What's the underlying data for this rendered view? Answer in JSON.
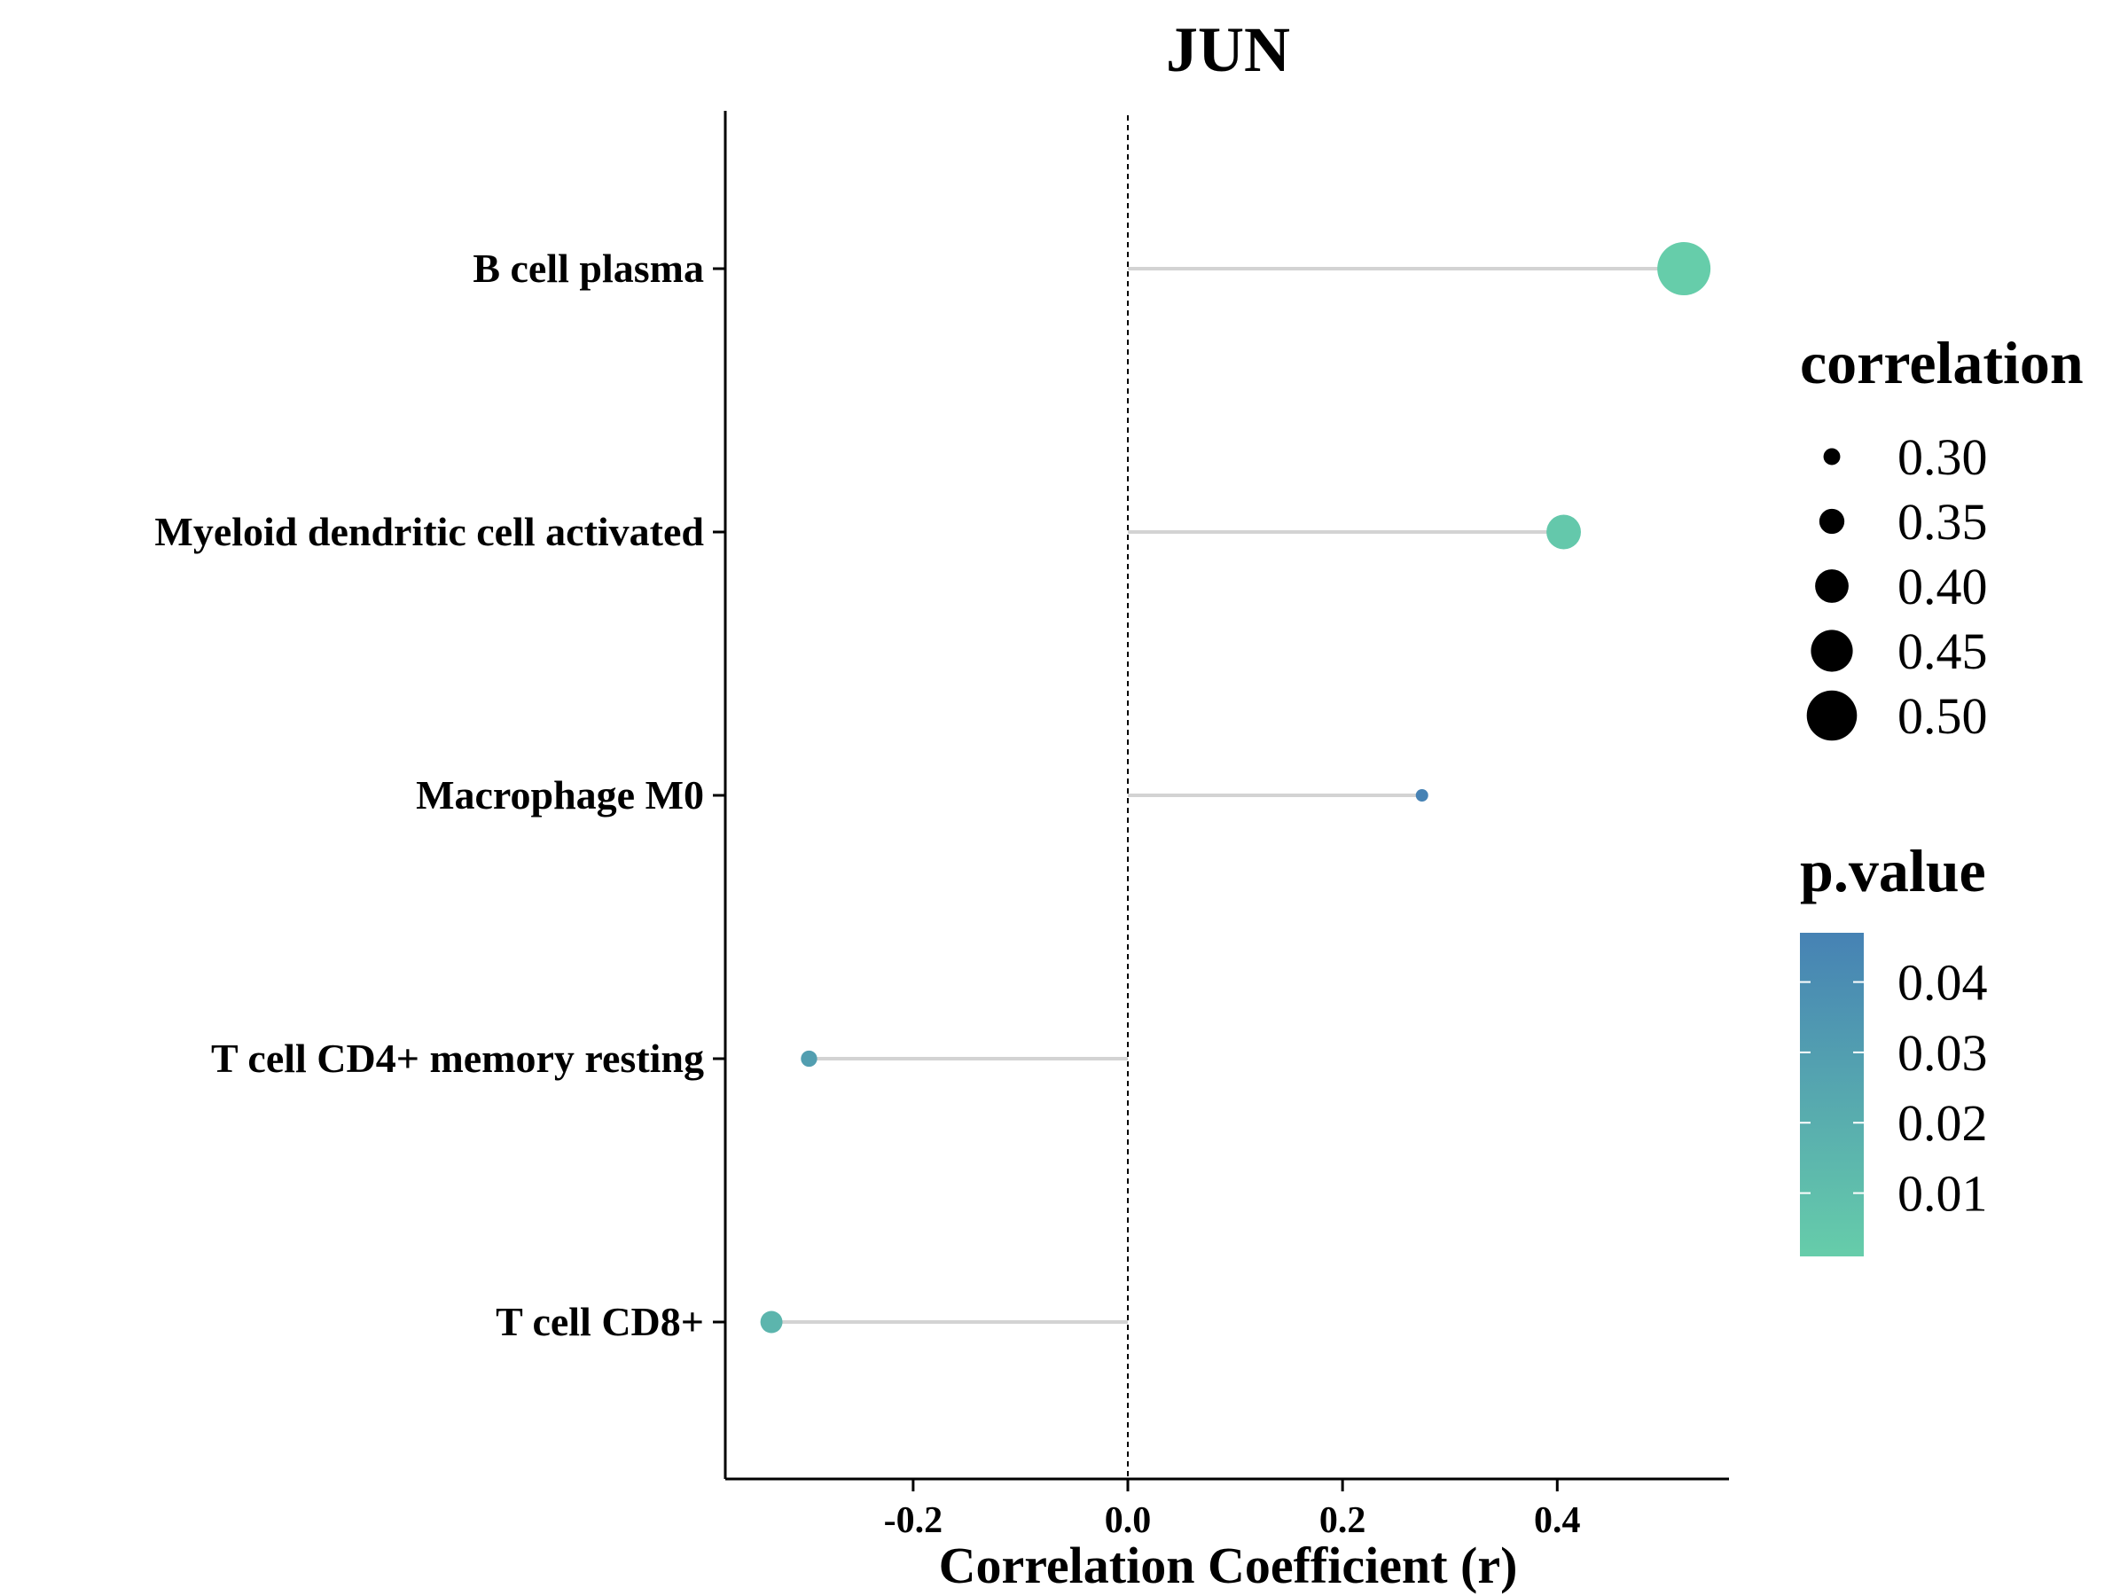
{
  "chart_data": {
    "type": "lollipop",
    "title": "JUN",
    "xlabel": "Correlation Coefficient (r)",
    "ylabel": "",
    "xlim": [
      -0.375,
      0.56
    ],
    "x_ticks": [
      -0.2,
      0.0,
      0.2,
      0.4
    ],
    "x_tick_labels": [
      "-0.2",
      "0.0",
      "0.2",
      "0.4"
    ],
    "reference_line": 0,
    "categories": [
      "B cell plasma",
      "Myeloid dendritic cell activated",
      "Macrophage M0",
      "T cell CD4+ memory resting",
      "T cell CD8+"
    ],
    "series": [
      {
        "values": [
          0.518,
          0.406,
          0.274,
          -0.297,
          -0.332
        ],
        "p_values": [
          0.001,
          0.004,
          0.047,
          0.03,
          0.016
        ],
        "abs_correlation": [
          0.518,
          0.406,
          0.274,
          0.297,
          0.332
        ]
      }
    ],
    "grid": false,
    "legend": {
      "placement": "right",
      "size_legend": {
        "title": "correlation",
        "values": [
          0.3,
          0.35,
          0.4,
          0.45,
          0.5
        ],
        "labels": [
          "0.30",
          "0.35",
          "0.40",
          "0.45",
          "0.50"
        ]
      },
      "color_legend": {
        "title": "p.value",
        "range": [
          0.001,
          0.047
        ],
        "ticks": [
          0.04,
          0.03,
          0.02,
          0.01
        ],
        "labels": [
          "0.04",
          "0.03",
          "0.02",
          "0.01"
        ],
        "low_color": "#66cdaa",
        "high_color": "#4682b4"
      }
    },
    "colors": {
      "stem": "#d3d3d3",
      "axis": "#000000",
      "reference_line": "#000000"
    }
  }
}
